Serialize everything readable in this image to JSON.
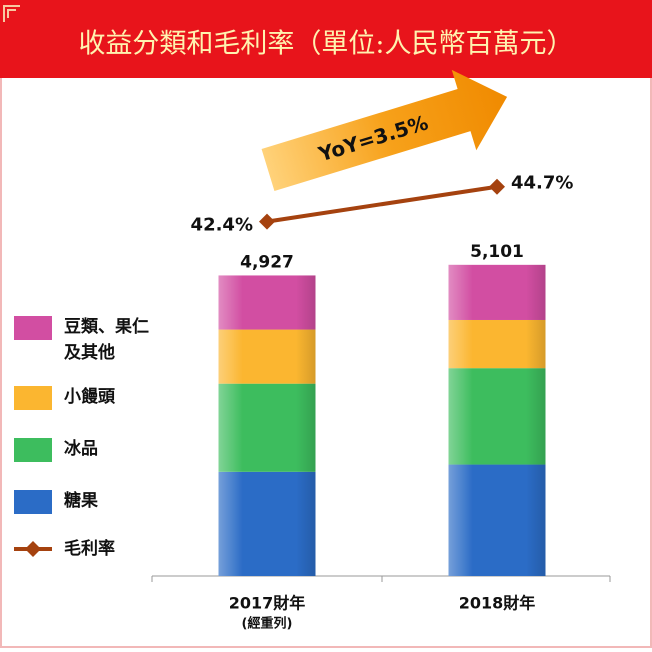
{
  "chart_data": {
    "type": "bar",
    "stacked": true,
    "title": "收益分類和毛利率（單位:人民幣百萬元）",
    "annotation": "YoY=3.5%",
    "categories": [
      "2017財年",
      "2018財年"
    ],
    "category_notes": [
      "(經重列)",
      null
    ],
    "total_labels": [
      "4,927",
      "5,101"
    ],
    "ylim": [
      0,
      5000
    ],
    "y2lim": [
      40,
      46
    ],
    "series": [
      {
        "name": "糖果",
        "color": "#2b6cc6",
        "values": [
          1708,
          1827
        ]
      },
      {
        "name": "冰品",
        "color": "#3dbd5e",
        "values": [
          1445,
          1580
        ]
      },
      {
        "name": "小饅頭",
        "color": "#fbb630",
        "values": [
          887,
          790
        ]
      },
      {
        "name": "豆類、果仁及其他",
        "color": "#d24ea2",
        "values": [
          887,
          904
        ]
      },
      {
        "name": "毛利率",
        "color": "#a5420f",
        "type": "line",
        "axis": "y2",
        "values": [
          42.4,
          44.7
        ],
        "value_labels": [
          "42.4%",
          "44.7%"
        ]
      }
    ]
  }
}
